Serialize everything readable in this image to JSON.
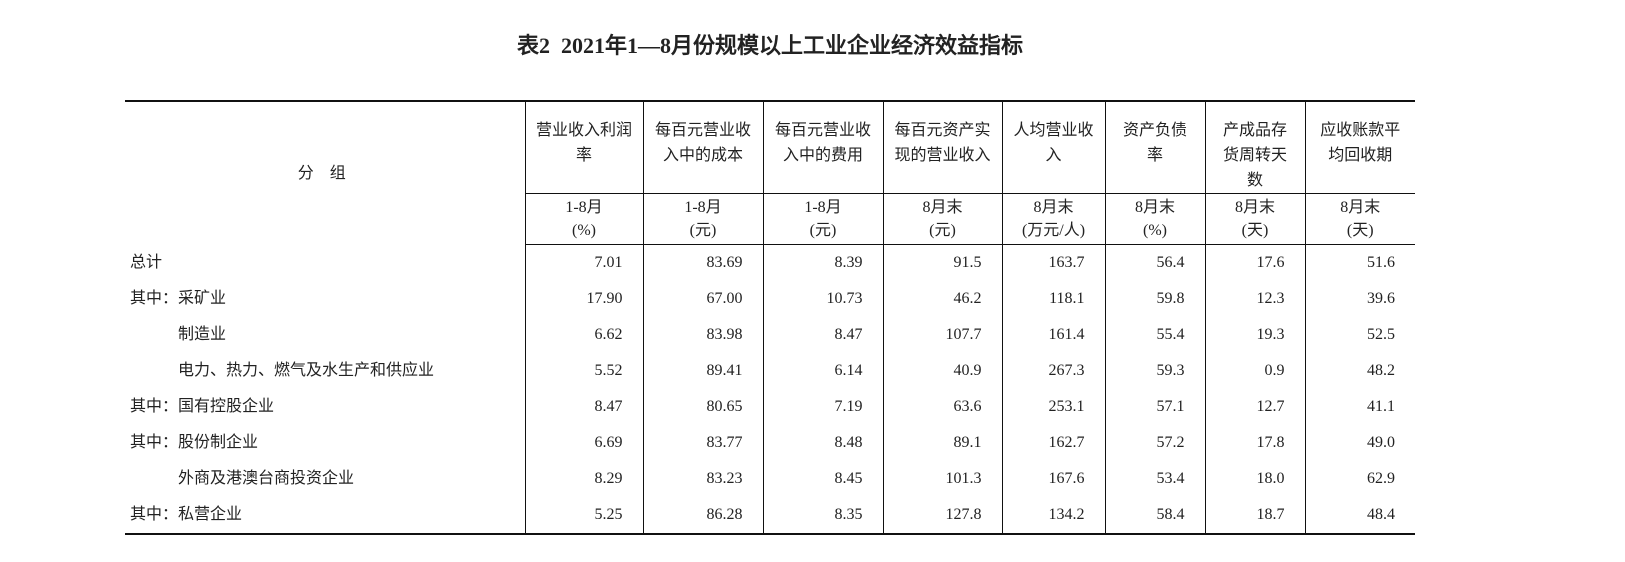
{
  "title": "表2  2021年1—8月份规模以上工业企业经济效益指标",
  "table": {
    "group_header": "分 组",
    "columns": [
      {
        "name": "营业收入利润率",
        "period": "1-8月",
        "unit": "(%)"
      },
      {
        "name": "每百元营业收入中的成本",
        "period": "1-8月",
        "unit": "(元)"
      },
      {
        "name": "每百元营业收入中的费用",
        "period": "1-8月",
        "unit": "(元)"
      },
      {
        "name": "每百元资产实现的营业收入",
        "period": "8月末",
        "unit": "(元)"
      },
      {
        "name": "人均营业收入",
        "period": "8月末",
        "unit": "(万元/人)"
      },
      {
        "name": "资产负债率",
        "period": "8月末",
        "unit": "(%)"
      },
      {
        "name": "产成品存货周转天数",
        "period": "8月末",
        "unit": "(天)"
      },
      {
        "name": "应收账款平均回收期",
        "period": "8月末",
        "unit": "(天)"
      }
    ],
    "rows": [
      {
        "label": "总计",
        "values": [
          "7.01",
          "83.69",
          "8.39",
          "91.5",
          "163.7",
          "56.4",
          "17.6",
          "51.6"
        ]
      },
      {
        "label": "其中：采矿业",
        "values": [
          "17.90",
          "67.00",
          "10.73",
          "46.2",
          "118.1",
          "59.8",
          "12.3",
          "39.6"
        ]
      },
      {
        "label": "制造业",
        "values": [
          "6.62",
          "83.98",
          "8.47",
          "107.7",
          "161.4",
          "55.4",
          "19.3",
          "52.5"
        ]
      },
      {
        "label": "电力、热力、燃气及水生产和供应业",
        "values": [
          "5.52",
          "89.41",
          "6.14",
          "40.9",
          "267.3",
          "59.3",
          "0.9",
          "48.2"
        ]
      },
      {
        "label": "其中：国有控股企业",
        "values": [
          "8.47",
          "80.65",
          "7.19",
          "63.6",
          "253.1",
          "57.1",
          "12.7",
          "41.1"
        ]
      },
      {
        "label": "其中：股份制企业",
        "values": [
          "6.69",
          "83.77",
          "8.48",
          "89.1",
          "162.7",
          "57.2",
          "17.8",
          "49.0"
        ]
      },
      {
        "label": "外商及港澳台商投资企业",
        "values": [
          "8.29",
          "83.23",
          "8.45",
          "101.3",
          "167.6",
          "53.4",
          "18.0",
          "62.9"
        ]
      },
      {
        "label": "其中：私营企业",
        "values": [
          "5.25",
          "86.28",
          "8.35",
          "127.8",
          "134.2",
          "58.4",
          "18.7",
          "48.4"
        ]
      }
    ]
  }
}
